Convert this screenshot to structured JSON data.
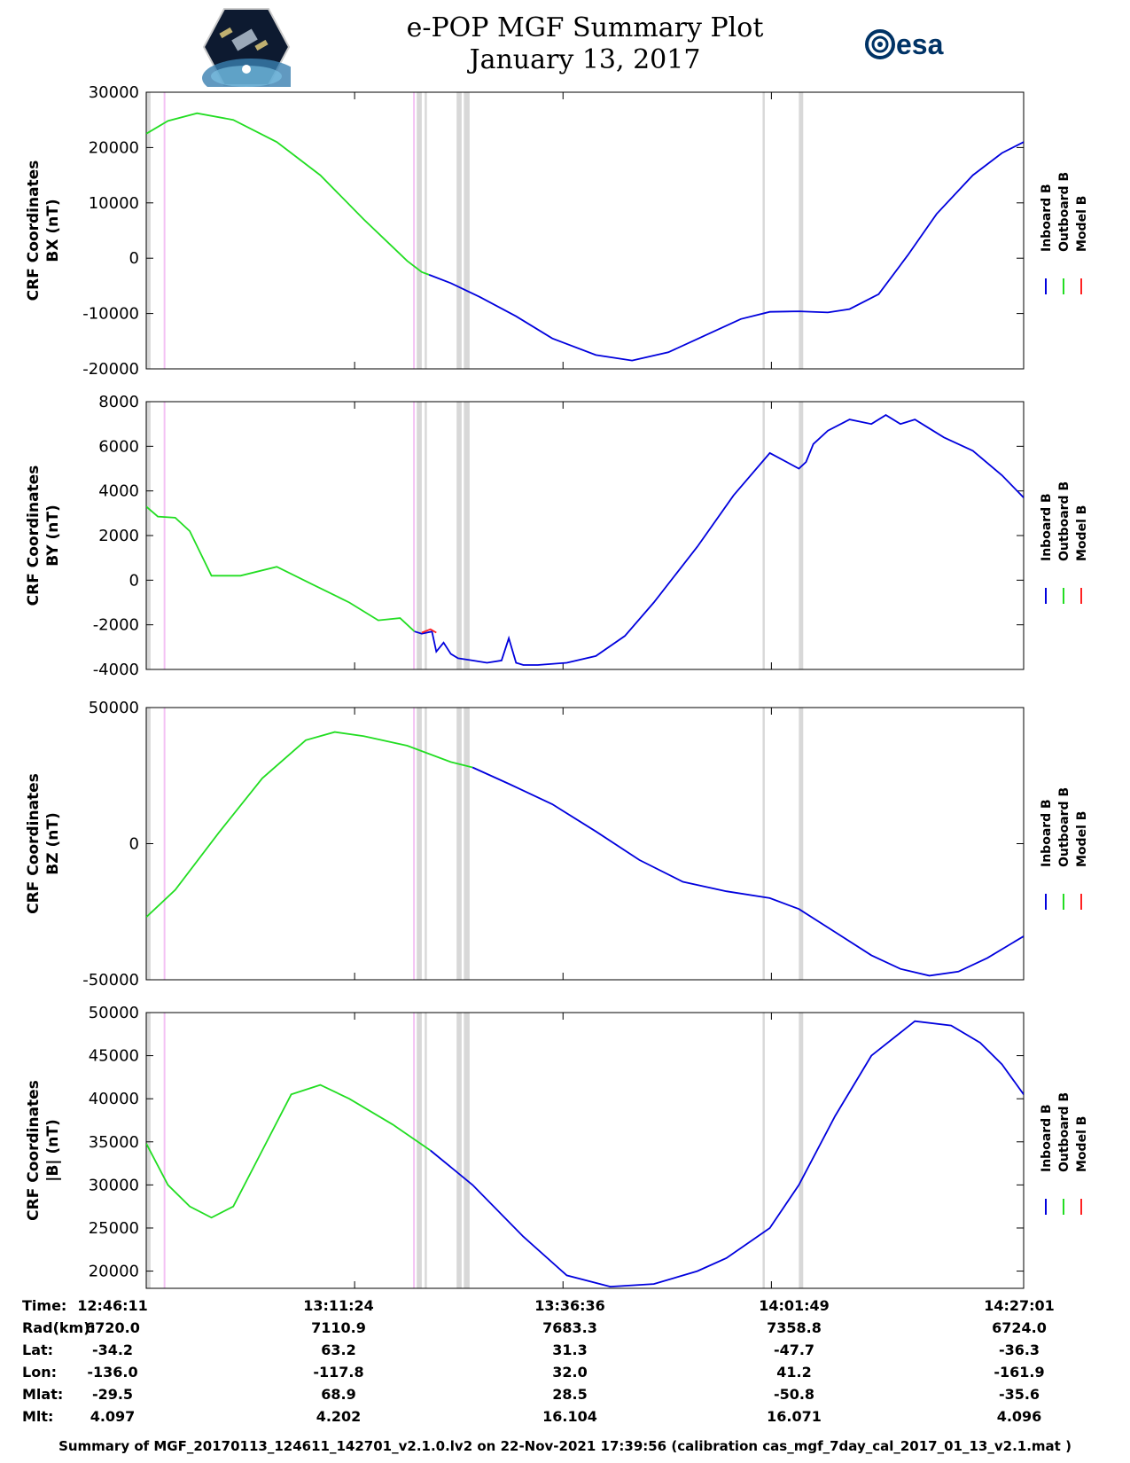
{
  "header": {
    "title": "e-POP MGF Summary Plot",
    "date": "January 13, 2017",
    "mission_logo_icon": "cassiope-satellite-logo",
    "agency_logo_text": "esa"
  },
  "legend": {
    "labels": [
      "Inboard B",
      "Outboard B",
      "Model B"
    ],
    "colors": [
      "#0000dd",
      "#22dd22",
      "#ff2222"
    ]
  },
  "chart_data": [
    {
      "type": "line",
      "ylabel_line1": "CRF Coordinates",
      "ylabel_line2": "BX (nT)",
      "ylim": [
        -20000,
        30000
      ],
      "yticks": [
        -20000,
        -10000,
        0,
        10000,
        20000,
        30000
      ],
      "ytick_labels": [
        "-20000",
        "-10000",
        "0",
        "10000",
        "20000",
        "30000"
      ],
      "xlim": [
        0,
        6050
      ],
      "outboard_end": 1740,
      "series": [
        {
          "name": "Outboard B",
          "x": [
            0,
            150,
            350,
            600,
            900,
            1200,
            1500,
            1700,
            1800,
            1900,
            1950
          ],
          "y": [
            22500,
            24800,
            26200,
            25000,
            21000,
            15000,
            7000,
            2000,
            -500,
            -2500,
            -3000
          ]
        },
        {
          "name": "Inboard B",
          "x": [
            1950,
            2100,
            2300,
            2550,
            2800,
            3100,
            3350,
            3600,
            3850,
            4100,
            4300,
            4500,
            4700,
            4850,
            5050,
            5250,
            5450,
            5700,
            5900,
            6050
          ],
          "y": [
            -3000,
            -4500,
            -7000,
            -10500,
            -14500,
            -17500,
            -18500,
            -17000,
            -14000,
            -11000,
            -9700,
            -9600,
            -9800,
            -9200,
            -6500,
            500,
            8000,
            15000,
            19000,
            21000
          ]
        }
      ]
    },
    {
      "type": "line",
      "ylabel_line1": "CRF Coordinates",
      "ylabel_line2": "BY (nT)",
      "ylim": [
        -4000,
        8000
      ],
      "yticks": [
        -4000,
        -2000,
        0,
        2000,
        4000,
        6000,
        8000
      ],
      "ytick_labels": [
        "-4000",
        "-2000",
        "0",
        "2000",
        "4000",
        "6000",
        "8000"
      ],
      "xlim": [
        0,
        6050
      ],
      "outboard_end": 1740,
      "series": [
        {
          "name": "Outboard B",
          "x": [
            0,
            80,
            200,
            300,
            450,
            650,
            900,
            1150,
            1400,
            1600,
            1750,
            1850
          ],
          "y": [
            3300,
            2850,
            2800,
            2200,
            200,
            200,
            600,
            -200,
            -1000,
            -1800,
            -1700,
            -2300
          ]
        },
        {
          "name": "Inboard B",
          "x": [
            1850,
            1900,
            1970,
            2000,
            2050,
            2100,
            2150,
            2250,
            2350,
            2450,
            2500,
            2550,
            2600,
            2700,
            2900,
            3100,
            3300,
            3500,
            3800,
            4050,
            4300,
            4500,
            4550,
            4600,
            4700,
            4850,
            5000,
            5100,
            5200,
            5300,
            5400,
            5500,
            5700,
            5900,
            6050
          ],
          "y": [
            -2300,
            -2400,
            -2300,
            -3200,
            -2800,
            -3300,
            -3500,
            -3600,
            -3700,
            -3600,
            -2600,
            -3700,
            -3800,
            -3800,
            -3700,
            -3400,
            -2500,
            -1000,
            1500,
            3800,
            5700,
            5000,
            5300,
            6100,
            6700,
            7200,
            7000,
            7400,
            7000,
            7200,
            6800,
            6400,
            5800,
            4700,
            3700
          ]
        },
        {
          "name": "Model B",
          "x": [
            1900,
            1960,
            2000
          ],
          "y": [
            -2350,
            -2200,
            -2350
          ]
        }
      ]
    },
    {
      "type": "line",
      "ylabel_line1": "CRF Coordinates",
      "ylabel_line2": "BZ (nT)",
      "ylim": [
        -50000,
        50000
      ],
      "yticks": [
        -50000,
        0,
        50000
      ],
      "ytick_labels": [
        "-50000",
        "0",
        "50000"
      ],
      "xlim": [
        0,
        6050
      ],
      "outboard_end": 2250,
      "series": [
        {
          "name": "Outboard B",
          "x": [
            0,
            200,
            500,
            800,
            1100,
            1300,
            1500,
            1800,
            2100,
            2250
          ],
          "y": [
            -27000,
            -17000,
            4000,
            24000,
            38000,
            41000,
            39500,
            36000,
            30000,
            28000
          ]
        },
        {
          "name": "Inboard B",
          "x": [
            2250,
            2500,
            2800,
            3100,
            3400,
            3700,
            4000,
            4300,
            4500,
            4750,
            5000,
            5200,
            5400,
            5600,
            5800,
            6050
          ],
          "y": [
            28000,
            22000,
            14500,
            4500,
            -6000,
            -14000,
            -17500,
            -20000,
            -24000,
            -32500,
            -41000,
            -46000,
            -48500,
            -47000,
            -42000,
            -34000
          ]
        }
      ]
    },
    {
      "type": "line",
      "ylabel_line1": "CRF Coordinates",
      "ylabel_line2": "|B| (nT)",
      "ylim": [
        18000,
        50000
      ],
      "yticks": [
        20000,
        25000,
        30000,
        35000,
        40000,
        45000,
        50000
      ],
      "ytick_labels": [
        "20000",
        "25000",
        "30000",
        "35000",
        "40000",
        "45000",
        "50000"
      ],
      "xlim": [
        0,
        6050
      ],
      "outboard_end": 1960,
      "series": [
        {
          "name": "Outboard B",
          "x": [
            0,
            150,
            300,
            450,
            600,
            800,
            1000,
            1200,
            1400,
            1700,
            1960
          ],
          "y": [
            34800,
            30000,
            27500,
            26200,
            27500,
            34000,
            40500,
            41600,
            40000,
            37000,
            34000
          ]
        },
        {
          "name": "Inboard B",
          "x": [
            1960,
            2250,
            2600,
            2900,
            3200,
            3500,
            3800,
            4000,
            4300,
            4500,
            4750,
            5000,
            5300,
            5550,
            5750,
            5900,
            6050
          ],
          "y": [
            34000,
            30000,
            24000,
            19500,
            18200,
            18500,
            20000,
            21500,
            25000,
            30000,
            38000,
            45000,
            49000,
            48500,
            46500,
            44000,
            40500
          ]
        }
      ]
    }
  ],
  "time_table": {
    "row_labels": [
      "Time:",
      "Rad(km):",
      "Lat:",
      "Lon:",
      "Mlat:",
      "Mlt:"
    ],
    "columns": [
      [
        "12:46:11",
        "6720.0",
        "-34.2",
        "-136.0",
        "-29.5",
        "4.097"
      ],
      [
        "13:11:24",
        "7110.9",
        "63.2",
        "-117.8",
        "68.9",
        "4.202"
      ],
      [
        "13:36:36",
        "7683.3",
        "31.3",
        "32.0",
        "28.5",
        "16.104"
      ],
      [
        "14:01:49",
        "7358.8",
        "-47.7",
        "41.2",
        "-50.8",
        "16.071"
      ],
      [
        "14:27:01",
        "6724.0",
        "-36.3",
        "-161.9",
        "-35.6",
        "4.096"
      ]
    ]
  },
  "footer": "Summary of MGF_20170113_124611_142701_v2.1.0.lv2 on 22-Nov-2021 17:39:56 (calibration cas_mgf_7day_cal_2017_01_13_v2.1.mat )"
}
